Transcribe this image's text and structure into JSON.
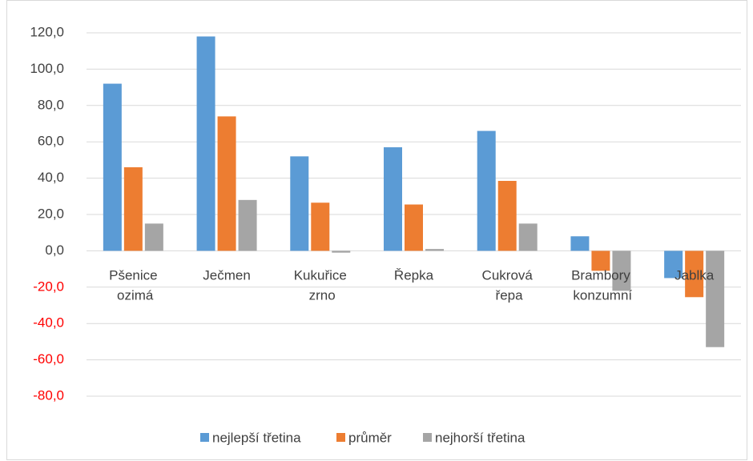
{
  "chart_data": {
    "type": "bar",
    "categories": [
      "Pšenice ozimá",
      "Ječmen",
      "Kukuřice zrno",
      "Řepka",
      "Cukrová řepa",
      "Brambory konzumní",
      "Jablka"
    ],
    "series": [
      {
        "name": "nejlepší třetina",
        "color": "#5b9bd5",
        "values": [
          92,
          118,
          52,
          57,
          66,
          8,
          -15
        ]
      },
      {
        "name": "průměr",
        "color": "#ed7d31",
        "values": [
          46,
          74,
          26.5,
          25.5,
          38.5,
          -11,
          -25.5
        ]
      },
      {
        "name": "nejhorší třetina",
        "color": "#a5a5a5",
        "values": [
          15,
          28,
          -1,
          1,
          15,
          -22,
          -53
        ]
      }
    ],
    "ylim": [
      -80,
      120
    ],
    "yticks": [
      {
        "value": -80,
        "label": "-80,0"
      },
      {
        "value": -60,
        "label": "-60,0"
      },
      {
        "value": -40,
        "label": "-40,0"
      },
      {
        "value": -20,
        "label": "-20,0"
      },
      {
        "value": 0,
        "label": "0,0"
      },
      {
        "value": 20,
        "label": "20,0"
      },
      {
        "value": 40,
        "label": "40,0"
      },
      {
        "value": 60,
        "label": "60,0"
      },
      {
        "value": 80,
        "label": "80,0"
      },
      {
        "value": 100,
        "label": "100,0"
      },
      {
        "value": 120,
        "label": "120,0"
      }
    ],
    "negative_tick_color": "#ff0000",
    "grid": true,
    "legend": "bottom"
  }
}
